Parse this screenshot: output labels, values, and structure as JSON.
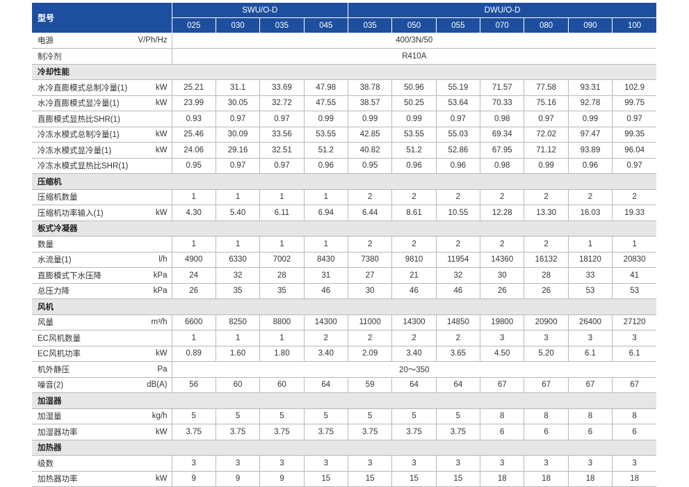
{
  "header": {
    "model_label": "型号",
    "group1": "SWU/O-D",
    "group2": "DWU/O-D",
    "models": [
      "025",
      "030",
      "035",
      "045",
      "035",
      "050",
      "055",
      "070",
      "080",
      "090",
      "100"
    ]
  },
  "rows": [
    {
      "type": "span",
      "label": "电源",
      "unit": "V/Ph/Hz",
      "value": "400/3N/50"
    },
    {
      "type": "span",
      "label": "制冷剂",
      "unit": "",
      "value": "R410A"
    },
    {
      "type": "section",
      "label": "冷却性能"
    },
    {
      "type": "data",
      "label": "水冷直膨模式总制冷量(1)",
      "unit": "kW",
      "values": [
        "25.21",
        "31.1",
        "33.69",
        "47.98",
        "38.78",
        "50.96",
        "55.19",
        "71.57",
        "77.58",
        "93.31",
        "102.9"
      ]
    },
    {
      "type": "data",
      "label": "水冷直膨模式显冷量(1)",
      "unit": "kW",
      "values": [
        "23.99",
        "30.05",
        "32.72",
        "47.55",
        "38.57",
        "50.25",
        "53.64",
        "70.33",
        "75.16",
        "92.78",
        "99.75"
      ]
    },
    {
      "type": "data",
      "label": "直膨模式显热比SHR(1)",
      "unit": "",
      "values": [
        "0.93",
        "0.97",
        "0.97",
        "0.99",
        "0.99",
        "0.99",
        "0.97",
        "0.98",
        "0.97",
        "0.99",
        "0.97"
      ]
    },
    {
      "type": "data",
      "label": "冷冻水模式总制冷量(1)",
      "unit": "kW",
      "values": [
        "25.46",
        "30.09",
        "33.56",
        "53.55",
        "42.85",
        "53.55",
        "55.03",
        "69.34",
        "72.02",
        "97.47",
        "99.35"
      ]
    },
    {
      "type": "data",
      "label": "冷冻水模式显冷量(1)",
      "unit": "kW",
      "values": [
        "24.06",
        "29.16",
        "32.51",
        "51.2",
        "40.82",
        "51.2",
        "52.86",
        "67.95",
        "71.12",
        "93.89",
        "96.04"
      ]
    },
    {
      "type": "data",
      "label": "冷冻水模式显热比SHR(1)",
      "unit": "",
      "values": [
        "0.95",
        "0.97",
        "0.97",
        "0.96",
        "0.95",
        "0.96",
        "0.96",
        "0.98",
        "0.99",
        "0.96",
        "0.97"
      ]
    },
    {
      "type": "section",
      "label": "压缩机"
    },
    {
      "type": "data",
      "label": "压缩机数量",
      "unit": "",
      "values": [
        "1",
        "1",
        "1",
        "1",
        "2",
        "2",
        "2",
        "2",
        "2",
        "2",
        "2"
      ]
    },
    {
      "type": "data",
      "label": "压缩机功率输入(1)",
      "unit": "kW",
      "values": [
        "4.30",
        "5.40",
        "6.11",
        "6.94",
        "6.44",
        "8.61",
        "10.55",
        "12.28",
        "13.30",
        "16.03",
        "19.33"
      ]
    },
    {
      "type": "section",
      "label": "板式冷凝器"
    },
    {
      "type": "data",
      "label": "数量",
      "unit": "",
      "values": [
        "1",
        "1",
        "1",
        "1",
        "2",
        "2",
        "2",
        "2",
        "2",
        "1",
        "1"
      ]
    },
    {
      "type": "data",
      "label": "水流量(1)",
      "unit": "l/h",
      "values": [
        "4900",
        "6330",
        "7002",
        "8430",
        "7380",
        "9810",
        "11954",
        "14360",
        "16132",
        "18120",
        "20830"
      ]
    },
    {
      "type": "data",
      "label": "直膨模式下水压降",
      "unit": "kPa",
      "values": [
        "24",
        "32",
        "28",
        "31",
        "27",
        "21",
        "32",
        "30",
        "28",
        "33",
        "41"
      ]
    },
    {
      "type": "data",
      "label": "总压力降",
      "unit": "kPa",
      "values": [
        "26",
        "35",
        "35",
        "46",
        "30",
        "46",
        "46",
        "26",
        "26",
        "53",
        "53"
      ]
    },
    {
      "type": "section",
      "label": "风机"
    },
    {
      "type": "data",
      "label": "风量",
      "unit": "m³/h",
      "values": [
        "6600",
        "8250",
        "8800",
        "14300",
        "11000",
        "14300",
        "14850",
        "19800",
        "20900",
        "26400",
        "27120"
      ]
    },
    {
      "type": "data",
      "label": "EC风机数量",
      "unit": "",
      "values": [
        "1",
        "1",
        "1",
        "2",
        "2",
        "2",
        "2",
        "3",
        "3",
        "3",
        "3"
      ]
    },
    {
      "type": "data",
      "label": "EC风机功率",
      "unit": "kW",
      "values": [
        "0.89",
        "1.60",
        "1.80",
        "3.40",
        "2.09",
        "3.40",
        "3.65",
        "4.50",
        "5.20",
        "6.1",
        "6.1"
      ]
    },
    {
      "type": "span",
      "label": "机外静压",
      "unit": "Pa",
      "value": "20～350"
    },
    {
      "type": "data",
      "label": "噪音(2)",
      "unit": "dB(A)",
      "values": [
        "56",
        "60",
        "60",
        "64",
        "59",
        "64",
        "64",
        "67",
        "67",
        "67",
        "67"
      ]
    },
    {
      "type": "section",
      "label": "加湿器"
    },
    {
      "type": "data",
      "label": "加湿量",
      "unit": "kg/h",
      "values": [
        "5",
        "5",
        "5",
        "5",
        "5",
        "5",
        "5",
        "8",
        "8",
        "8",
        "8"
      ]
    },
    {
      "type": "data",
      "label": "加湿器功率",
      "unit": "kW",
      "values": [
        "3.75",
        "3.75",
        "3.75",
        "3.75",
        "3.75",
        "3.75",
        "3.75",
        "6",
        "6",
        "6",
        "6"
      ]
    },
    {
      "type": "section",
      "label": "加热器"
    },
    {
      "type": "data",
      "label": "级数",
      "unit": "",
      "values": [
        "3",
        "3",
        "3",
        "3",
        "3",
        "3",
        "3",
        "3",
        "3",
        "3",
        "3"
      ]
    },
    {
      "type": "data",
      "label": "加热器功率",
      "unit": "kW",
      "values": [
        "9",
        "9",
        "9",
        "15",
        "15",
        "15",
        "15",
        "18",
        "18",
        "18",
        "18"
      ]
    }
  ]
}
